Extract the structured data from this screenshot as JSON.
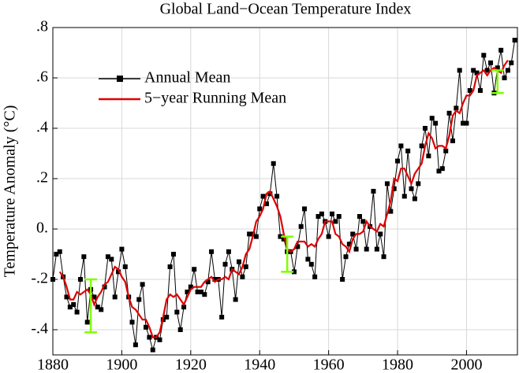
{
  "chart_data": {
    "type": "line",
    "title": "Global Land−Ocean Temperature Index",
    "ylabel": "Temperature Anomaly (°C)",
    "xlim": [
      1880,
      2015
    ],
    "xticks": [
      1880,
      1900,
      1920,
      1940,
      1960,
      1980,
      2000
    ],
    "ylim": [
      -0.5,
      0.8
    ],
    "yticks": [
      {
        "value": -0.4,
        "label": "-.4"
      },
      {
        "value": -0.2,
        "label": "-.2"
      },
      {
        "value": 0,
        "label": "0."
      },
      {
        "value": 0.2,
        "label": ".2"
      },
      {
        "value": 0.4,
        "label": ".4"
      },
      {
        "value": 0.6,
        "label": ".6"
      },
      {
        "value": 0.8,
        "label": ".8"
      }
    ],
    "grid": true,
    "legend": "upper left",
    "series": [
      {
        "name": "Annual Mean",
        "color": "#000000",
        "marker": "square",
        "x": [
          1880,
          1881,
          1882,
          1883,
          1884,
          1885,
          1886,
          1887,
          1888,
          1889,
          1890,
          1891,
          1892,
          1893,
          1894,
          1895,
          1896,
          1897,
          1898,
          1899,
          1900,
          1901,
          1902,
          1903,
          1904,
          1905,
          1906,
          1907,
          1908,
          1909,
          1910,
          1911,
          1912,
          1913,
          1914,
          1915,
          1916,
          1917,
          1918,
          1919,
          1920,
          1921,
          1922,
          1923,
          1924,
          1925,
          1926,
          1927,
          1928,
          1929,
          1930,
          1931,
          1932,
          1933,
          1934,
          1935,
          1936,
          1937,
          1938,
          1939,
          1940,
          1941,
          1942,
          1943,
          1944,
          1945,
          1946,
          1947,
          1948,
          1949,
          1950,
          1951,
          1952,
          1953,
          1954,
          1955,
          1956,
          1957,
          1958,
          1959,
          1960,
          1961,
          1962,
          1963,
          1964,
          1965,
          1966,
          1967,
          1968,
          1969,
          1970,
          1971,
          1972,
          1973,
          1974,
          1975,
          1976,
          1977,
          1978,
          1979,
          1980,
          1981,
          1982,
          1983,
          1984,
          1985,
          1986,
          1987,
          1988,
          1989,
          1990,
          1991,
          1992,
          1993,
          1994,
          1995,
          1996,
          1997,
          1998,
          1999,
          2000,
          2001,
          2002,
          2003,
          2004,
          2005,
          2006,
          2007,
          2008,
          2009,
          2010,
          2011,
          2012,
          2013,
          2014
        ],
        "values": [
          -0.2,
          -0.1,
          -0.09,
          -0.19,
          -0.27,
          -0.31,
          -0.3,
          -0.33,
          -0.2,
          -0.11,
          -0.37,
          -0.24,
          -0.27,
          -0.31,
          -0.32,
          -0.23,
          -0.11,
          -0.12,
          -0.27,
          -0.17,
          -0.08,
          -0.15,
          -0.27,
          -0.37,
          -0.46,
          -0.28,
          -0.22,
          -0.39,
          -0.43,
          -0.48,
          -0.43,
          -0.44,
          -0.36,
          -0.35,
          -0.15,
          -0.1,
          -0.33,
          -0.4,
          -0.31,
          -0.25,
          -0.23,
          -0.16,
          -0.25,
          -0.25,
          -0.26,
          -0.21,
          -0.09,
          -0.2,
          -0.2,
          -0.35,
          -0.14,
          -0.09,
          -0.16,
          -0.28,
          -0.13,
          -0.19,
          -0.15,
          -0.02,
          -0.02,
          -0.03,
          0.08,
          0.13,
          0.1,
          0.14,
          0.26,
          0.13,
          -0.03,
          -0.04,
          -0.09,
          -0.09,
          -0.17,
          -0.07,
          0.01,
          0.08,
          -0.12,
          -0.14,
          -0.19,
          0.05,
          0.06,
          0.03,
          -0.03,
          0.06,
          0.03,
          0.05,
          -0.2,
          -0.11,
          -0.06,
          -0.02,
          -0.08,
          0.05,
          0.03,
          -0.08,
          0.01,
          0.15,
          -0.08,
          -0.02,
          -0.11,
          0.18,
          0.07,
          0.16,
          0.27,
          0.33,
          0.13,
          0.31,
          0.16,
          0.12,
          0.18,
          0.33,
          0.4,
          0.29,
          0.44,
          0.42,
          0.23,
          0.24,
          0.31,
          0.46,
          0.35,
          0.48,
          0.63,
          0.42,
          0.42,
          0.55,
          0.63,
          0.62,
          0.55,
          0.69,
          0.63,
          0.66,
          0.54,
          0.64,
          0.71,
          0.6,
          0.63,
          0.66,
          0.75
        ]
      },
      {
        "name": "5−year Running Mean",
        "color": "#e00000",
        "x": [
          1882,
          1883,
          1884,
          1885,
          1886,
          1887,
          1888,
          1889,
          1890,
          1891,
          1892,
          1893,
          1894,
          1895,
          1896,
          1897,
          1898,
          1899,
          1900,
          1901,
          1902,
          1903,
          1904,
          1905,
          1906,
          1907,
          1908,
          1909,
          1910,
          1911,
          1912,
          1913,
          1914,
          1915,
          1916,
          1917,
          1918,
          1919,
          1920,
          1921,
          1922,
          1923,
          1924,
          1925,
          1926,
          1927,
          1928,
          1929,
          1930,
          1931,
          1932,
          1933,
          1934,
          1935,
          1936,
          1937,
          1938,
          1939,
          1940,
          1941,
          1942,
          1943,
          1944,
          1945,
          1946,
          1947,
          1948,
          1949,
          1950,
          1951,
          1952,
          1953,
          1954,
          1955,
          1956,
          1957,
          1958,
          1959,
          1960,
          1961,
          1962,
          1963,
          1964,
          1965,
          1966,
          1967,
          1968,
          1969,
          1970,
          1971,
          1972,
          1973,
          1974,
          1975,
          1976,
          1977,
          1978,
          1979,
          1980,
          1981,
          1982,
          1983,
          1984,
          1985,
          1986,
          1987,
          1988,
          1989,
          1990,
          1991,
          1992,
          1993,
          1994,
          1995,
          1996,
          1997,
          1998,
          1999,
          2000,
          2001,
          2002,
          2003,
          2004,
          2005,
          2006,
          2007,
          2008,
          2009,
          2010,
          2011,
          2012
        ],
        "values": [
          -0.17,
          -0.19,
          -0.23,
          -0.28,
          -0.28,
          -0.25,
          -0.26,
          -0.25,
          -0.24,
          -0.26,
          -0.3,
          -0.27,
          -0.25,
          -0.22,
          -0.21,
          -0.18,
          -0.15,
          -0.16,
          -0.19,
          -0.21,
          -0.27,
          -0.31,
          -0.32,
          -0.34,
          -0.36,
          -0.36,
          -0.39,
          -0.43,
          -0.43,
          -0.41,
          -0.35,
          -0.28,
          -0.26,
          -0.27,
          -0.26,
          -0.28,
          -0.3,
          -0.27,
          -0.24,
          -0.23,
          -0.23,
          -0.23,
          -0.21,
          -0.2,
          -0.19,
          -0.21,
          -0.2,
          -0.2,
          -0.19,
          -0.2,
          -0.16,
          -0.17,
          -0.18,
          -0.15,
          -0.1,
          -0.08,
          -0.03,
          0.03,
          0.05,
          0.08,
          0.14,
          0.15,
          0.12,
          0.09,
          0.05,
          -0.02,
          -0.08,
          -0.09,
          -0.08,
          -0.05,
          -0.05,
          -0.05,
          -0.07,
          -0.06,
          -0.07,
          -0.04,
          -0.02,
          0.03,
          0.03,
          0.03,
          -0.02,
          -0.03,
          -0.06,
          -0.07,
          -0.09,
          -0.04,
          -0.02,
          -0.02,
          -0.01,
          0.03,
          0.01,
          0.0,
          -0.01,
          0.02,
          0.01,
          0.06,
          0.11,
          0.2,
          0.19,
          0.24,
          0.24,
          0.21,
          0.18,
          0.22,
          0.24,
          0.26,
          0.33,
          0.38,
          0.36,
          0.32,
          0.33,
          0.33,
          0.32,
          0.37,
          0.45,
          0.47,
          0.46,
          0.5,
          0.53,
          0.53,
          0.55,
          0.61,
          0.62,
          0.63,
          0.61,
          0.63,
          0.64,
          0.63,
          0.62,
          0.65,
          0.67
        ]
      }
    ],
    "error_bars": {
      "color": "#7fff00",
      "x": [
        1891,
        1948,
        2009
      ],
      "values": [
        -0.305,
        -0.1,
        0.585
      ],
      "errors": [
        0.105,
        0.07,
        0.045
      ]
    }
  }
}
